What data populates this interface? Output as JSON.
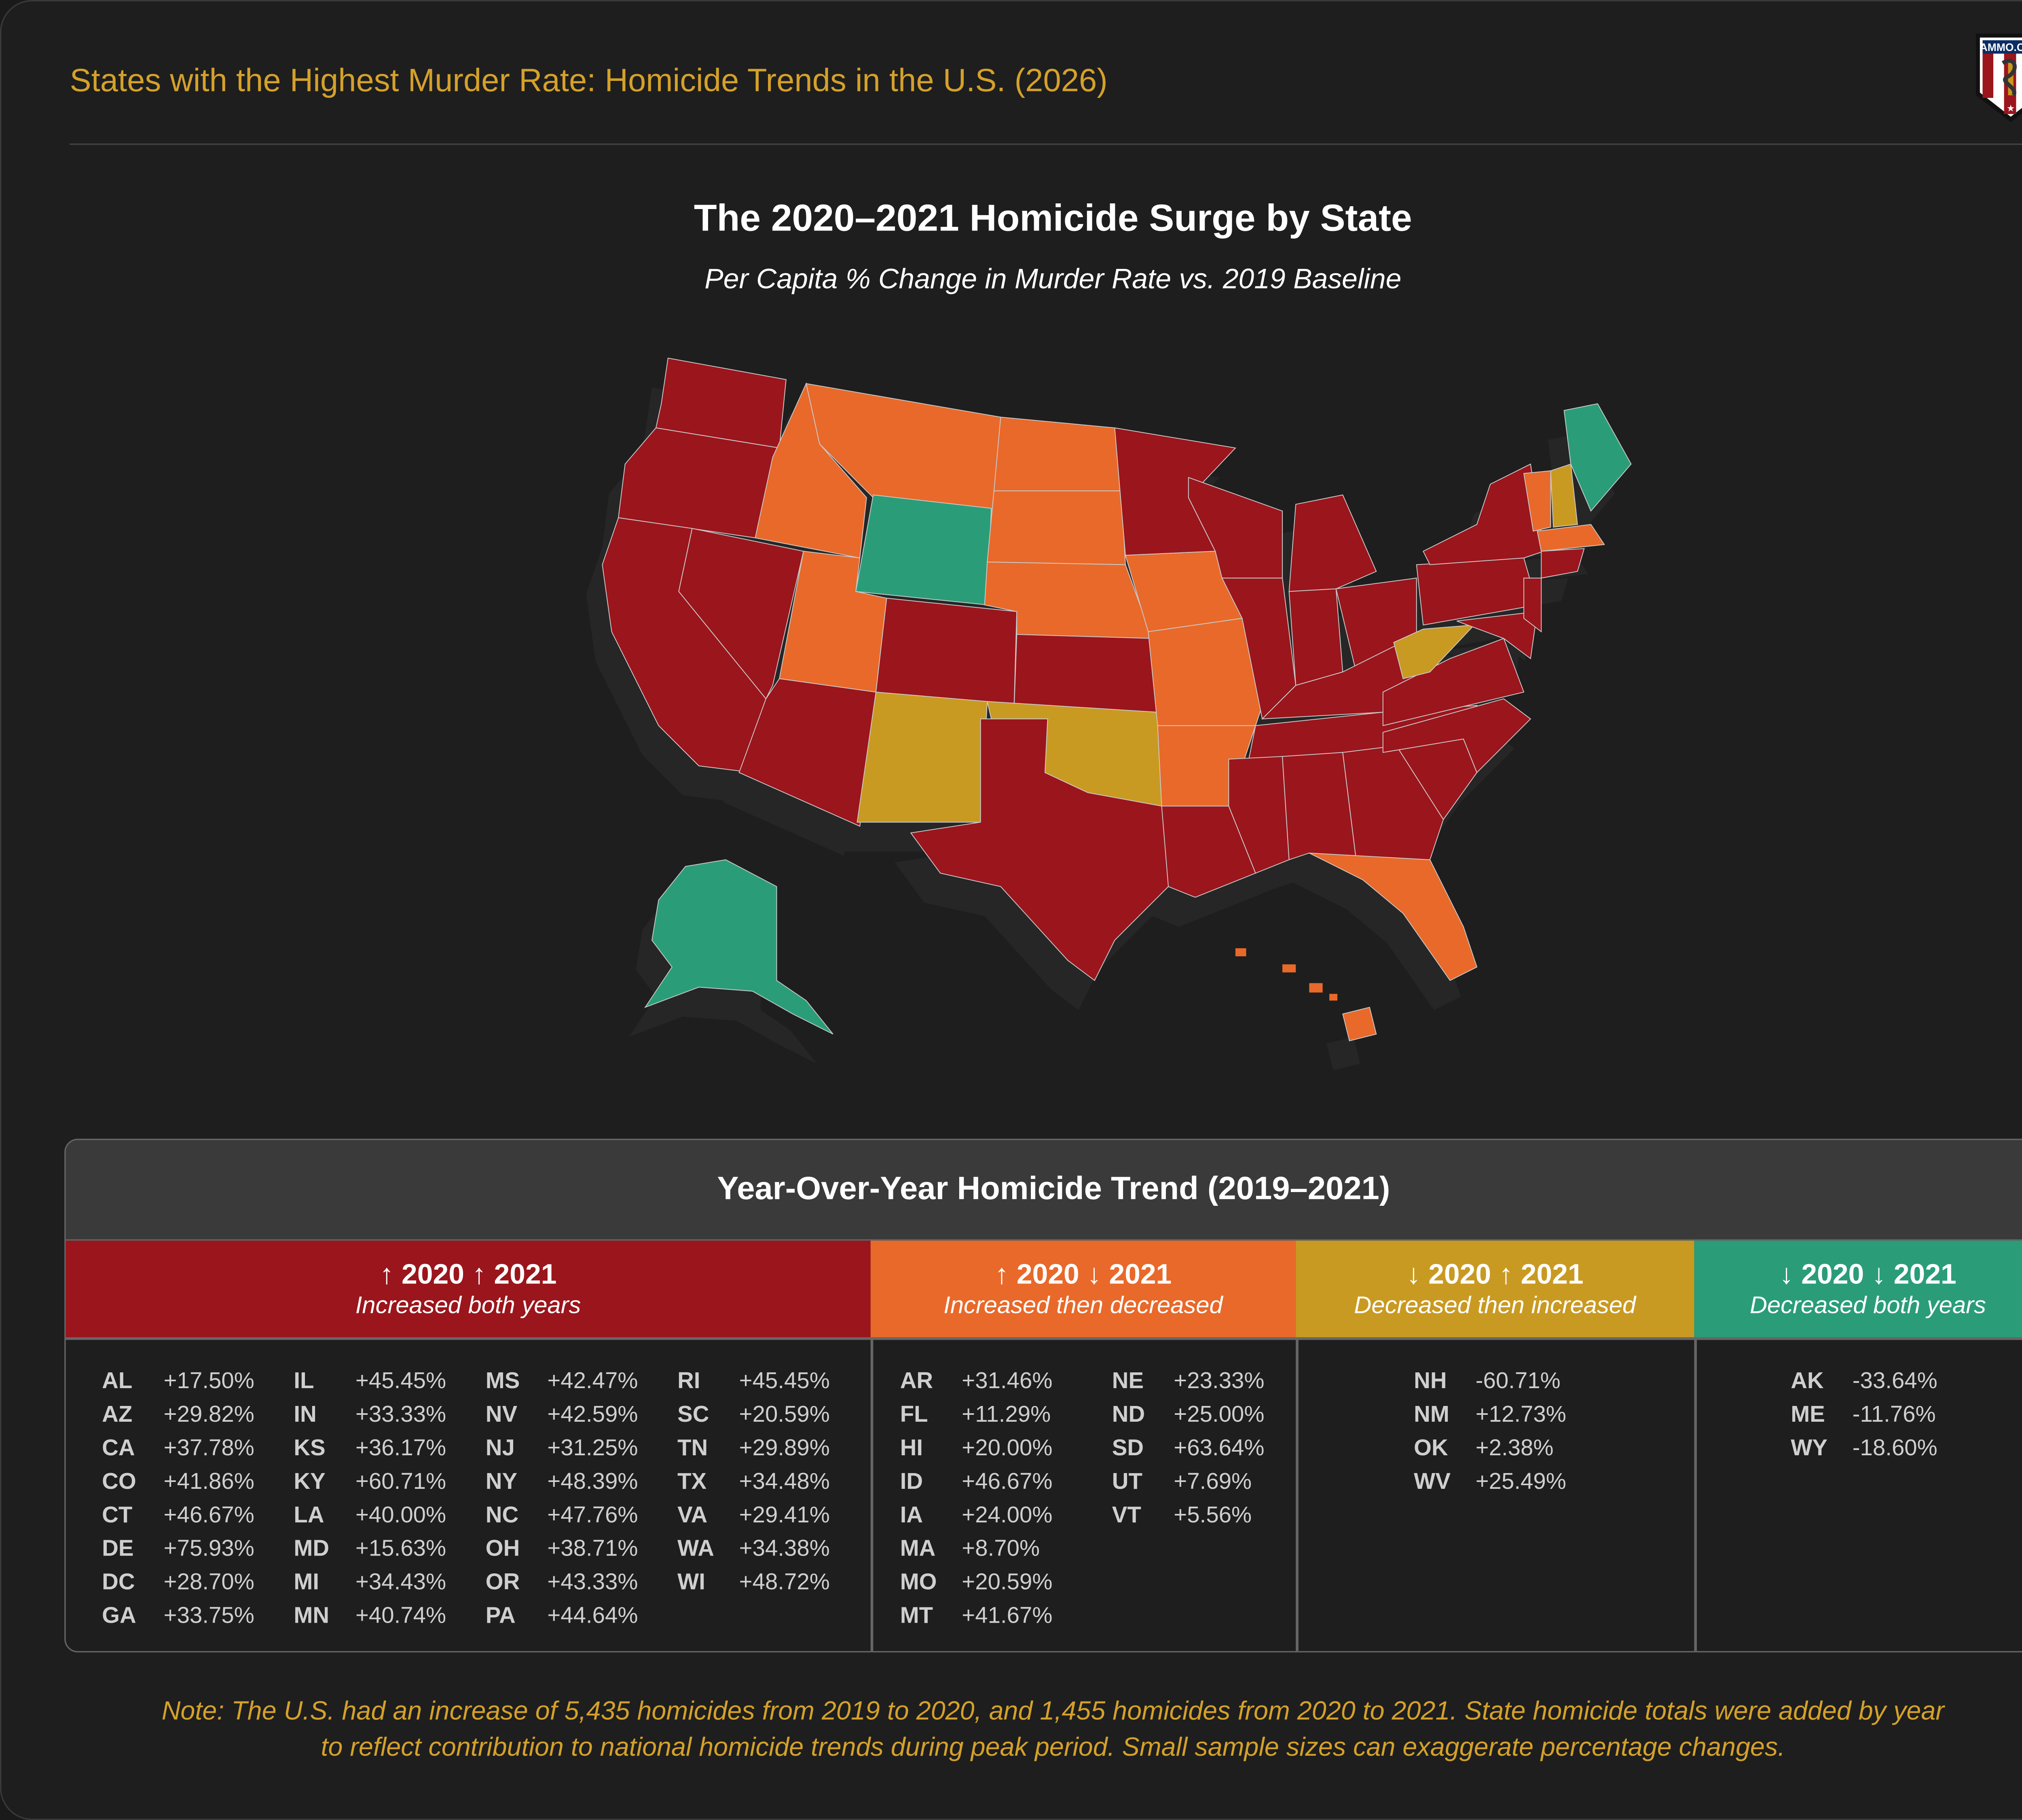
{
  "header": {
    "title": "States with the Highest Murder Rate: Homicide Trends in the U.S. (2026)",
    "logo_text": "AMMO.COM"
  },
  "chart_data": {
    "type": "choropleth-map",
    "title": "The 2020–2021 Homicide Surge by State",
    "subtitle": "Per Capita % Change in Murder Rate vs. 2019 Baseline",
    "colors": {
      "up_up": "#9b151c",
      "up_down": "#e8692a",
      "down_up": "#c99a22",
      "down_down": "#2a9d78"
    },
    "states": {
      "WA": "up_up",
      "OR": "up_up",
      "CA": "up_up",
      "NV": "up_up",
      "ID": "up_down",
      "MT": "up_down",
      "WY": "down_down",
      "UT": "up_down",
      "CO": "up_up",
      "AZ": "up_up",
      "NM": "down_up",
      "ND": "up_down",
      "SD": "up_down",
      "NE": "up_down",
      "KS": "up_up",
      "OK": "down_up",
      "TX": "up_up",
      "MN": "up_up",
      "IA": "up_down",
      "MO": "up_down",
      "AR": "up_down",
      "LA": "up_up",
      "WI": "up_up",
      "IL": "up_up",
      "MI": "up_up",
      "IN": "up_up",
      "OH": "up_up",
      "KY": "up_up",
      "TN": "up_up",
      "MS": "up_up",
      "AL": "up_up",
      "GA": "up_up",
      "FL": "up_down",
      "SC": "up_up",
      "NC": "up_up",
      "VA": "up_up",
      "WV": "down_up",
      "PA": "up_up",
      "NY": "up_up",
      "MD": "up_up",
      "NJ": "up_up",
      "VT": "up_down",
      "NH": "down_up",
      "ME": "down_down",
      "MA": "up_down",
      "CT": "up_up",
      "AK": "down_down",
      "HI": "up_down"
    }
  },
  "table": {
    "title": "Year-Over-Year Homicide Trend (2019–2021)",
    "groups": [
      {
        "key": "up_up",
        "heading": "↑ 2020 ↑ 2021",
        "caption": "Increased both years",
        "rows": [
          [
            "AL",
            "+17.50%"
          ],
          [
            "AZ",
            "+29.82%"
          ],
          [
            "CA",
            "+37.78%"
          ],
          [
            "CO",
            "+41.86%"
          ],
          [
            "CT",
            "+46.67%"
          ],
          [
            "DE",
            "+75.93%"
          ],
          [
            "DC",
            "+28.70%"
          ],
          [
            "GA",
            "+33.75%"
          ],
          [
            "IL",
            "+45.45%"
          ],
          [
            "IN",
            "+33.33%"
          ],
          [
            "KS",
            "+36.17%"
          ],
          [
            "KY",
            "+60.71%"
          ],
          [
            "LA",
            "+40.00%"
          ],
          [
            "MD",
            "+15.63%"
          ],
          [
            "MI",
            "+34.43%"
          ],
          [
            "MN",
            "+40.74%"
          ],
          [
            "MS",
            "+42.47%"
          ],
          [
            "NV",
            "+42.59%"
          ],
          [
            "NJ",
            "+31.25%"
          ],
          [
            "NY",
            "+48.39%"
          ],
          [
            "NC",
            "+47.76%"
          ],
          [
            "OH",
            "+38.71%"
          ],
          [
            "OR",
            "+43.33%"
          ],
          [
            "PA",
            "+44.64%"
          ],
          [
            "RI",
            "+45.45%"
          ],
          [
            "SC",
            "+20.59%"
          ],
          [
            "TN",
            "+29.89%"
          ],
          [
            "TX",
            "+34.48%"
          ],
          [
            "VA",
            "+29.41%"
          ],
          [
            "WA",
            "+34.38%"
          ],
          [
            "WI",
            "+48.72%"
          ]
        ]
      },
      {
        "key": "up_down",
        "heading": "↑ 2020 ↓ 2021",
        "caption": "Increased then decreased",
        "rows": [
          [
            "AR",
            "+31.46%"
          ],
          [
            "FL",
            "+11.29%"
          ],
          [
            "HI",
            "+20.00%"
          ],
          [
            "ID",
            "+46.67%"
          ],
          [
            "IA",
            "+24.00%"
          ],
          [
            "MA",
            "+8.70%"
          ],
          [
            "MO",
            "+20.59%"
          ],
          [
            "MT",
            "+41.67%"
          ],
          [
            "NE",
            "+23.33%"
          ],
          [
            "ND",
            "+25.00%"
          ],
          [
            "SD",
            "+63.64%"
          ],
          [
            "UT",
            "+7.69%"
          ],
          [
            "VT",
            "+5.56%"
          ]
        ]
      },
      {
        "key": "down_up",
        "heading": "↓ 2020 ↑ 2021",
        "caption": "Decreased then increased",
        "rows": [
          [
            "NH",
            "-60.71%"
          ],
          [
            "NM",
            "+12.73%"
          ],
          [
            "OK",
            "+2.38%"
          ],
          [
            "WV",
            "+25.49%"
          ]
        ]
      },
      {
        "key": "down_down",
        "heading": "↓ 2020 ↓ 2021",
        "caption": "Decreased both years",
        "rows": [
          [
            "AK",
            "-33.64%"
          ],
          [
            "ME",
            "-11.76%"
          ],
          [
            "WY",
            "-18.60%"
          ]
        ]
      }
    ]
  },
  "note": {
    "line1": "Note: The U.S. had an increase of 5,435 homicides from 2019 to 2020, and 1,455 homicides from 2020 to 2021. State homicide totals were added by year",
    "line2": "to reflect contribution to national homicide trends during peak period. Small sample sizes can exaggerate percentage changes."
  }
}
